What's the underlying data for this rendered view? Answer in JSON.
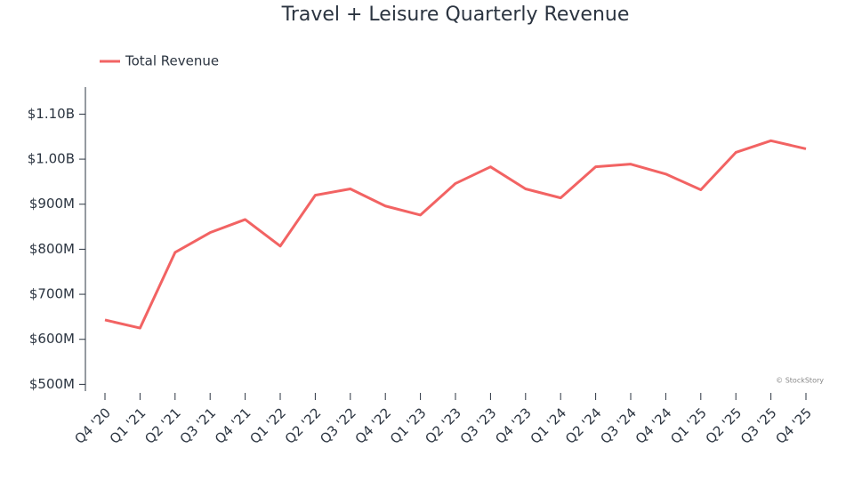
{
  "chart_data": {
    "type": "line",
    "title": "Travel + Leisure Quarterly Revenue",
    "watermark": "© StockStory",
    "categories": [
      "Q4 '20",
      "Q1 '21",
      "Q2 '21",
      "Q3 '21",
      "Q4 '21",
      "Q1 '22",
      "Q2 '22",
      "Q3 '22",
      "Q4 '22",
      "Q1 '23",
      "Q2 '23",
      "Q3 '23",
      "Q4 '23",
      "Q1 '24",
      "Q2 '24",
      "Q3 '24",
      "Q4 '24",
      "Q1 '25",
      "Q2 '25",
      "Q3 '25",
      "Q4 '25"
    ],
    "series": [
      {
        "name": "Total Revenue",
        "color": "#f26363",
        "values": [
          643000000,
          625000000,
          793000000,
          837000000,
          866000000,
          807000000,
          920000000,
          934000000,
          896000000,
          876000000,
          946000000,
          983000000,
          934000000,
          914000000,
          983000000,
          989000000,
          967000000,
          932000000,
          1015000000,
          1041000000,
          1023000000
        ]
      }
    ],
    "ylim": [
      485000000,
      1160000000
    ],
    "yticks": [
      {
        "value": 500000000,
        "label": "$500M"
      },
      {
        "value": 600000000,
        "label": "$600M"
      },
      {
        "value": 700000000,
        "label": "$700M"
      },
      {
        "value": 800000000,
        "label": "$800M"
      },
      {
        "value": 900000000,
        "label": "$900M"
      },
      {
        "value": 1000000000,
        "label": "$1.00B"
      },
      {
        "value": 1100000000,
        "label": "$1.10B"
      }
    ],
    "legend": "top-left",
    "grid": false
  }
}
